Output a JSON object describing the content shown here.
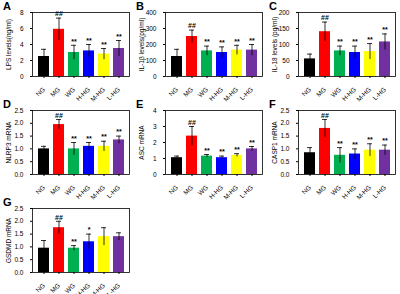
{
  "chart_data": [
    {
      "type": "bar",
      "title": "A",
      "y_label": "LPS levels(ng/ml)",
      "categories": [
        "NG",
        "MG",
        "WG",
        "H-HG",
        "M-HG",
        "L-HG"
      ],
      "values": [
        2.5,
        5.9,
        3.0,
        3.2,
        2.8,
        3.5
      ],
      "errors": [
        0.9,
        1.4,
        0.9,
        0.8,
        0.7,
        1.0
      ],
      "annotations": [
        null,
        "##",
        "**",
        "**",
        "**",
        "**"
      ],
      "colors": [
        "#000000",
        "#ff0000",
        "#00b050",
        "#0000ff",
        "#ffff00",
        "#7030a0"
      ],
      "ylim": [
        0,
        8
      ],
      "yticks": [
        0,
        2,
        4,
        6,
        8
      ]
    },
    {
      "type": "bar",
      "title": "B",
      "y_label": "IL-1β levels(pg/ml)",
      "categories": [
        "NG",
        "MG",
        "WG",
        "H-HG",
        "M-HG",
        "L-HG"
      ],
      "values": [
        125,
        250,
        160,
        150,
        165,
        165
      ],
      "errors": [
        45,
        40,
        30,
        35,
        30,
        35
      ],
      "annotations": [
        null,
        "##",
        "**",
        "**",
        "**",
        "**"
      ],
      "colors": [
        "#000000",
        "#ff0000",
        "#00b050",
        "#0000ff",
        "#ffff00",
        "#7030a0"
      ],
      "ylim": [
        0,
        400
      ],
      "yticks": [
        0,
        100,
        200,
        300,
        400
      ]
    },
    {
      "type": "bar",
      "title": "C",
      "y_label": "IL-18 levels (pg/ml)",
      "categories": [
        "NG",
        "MG",
        "WG",
        "H-HG",
        "M-HG",
        "L-HG"
      ],
      "values": [
        55,
        140,
        80,
        75,
        78,
        108
      ],
      "errors": [
        15,
        30,
        15,
        20,
        25,
        25
      ],
      "annotations": [
        null,
        "##",
        "**",
        "**",
        "**",
        "**"
      ],
      "colors": [
        "#000000",
        "#ff0000",
        "#00b050",
        "#0000ff",
        "#ffff00",
        "#7030a0"
      ],
      "ylim": [
        0,
        200
      ],
      "yticks": [
        0,
        50,
        100,
        150,
        200
      ]
    },
    {
      "type": "bar",
      "title": "D",
      "y_label": "NLRP3 mRNA",
      "categories": [
        "NG",
        "MG",
        "WG",
        "H-HG",
        "M-HG",
        "L-HG"
      ],
      "values": [
        1.0,
        1.95,
        1.0,
        1.1,
        1.1,
        1.35
      ],
      "errors": [
        0.1,
        0.2,
        0.25,
        0.15,
        0.2,
        0.15
      ],
      "annotations": [
        null,
        "##",
        "**",
        "**",
        "**",
        "**"
      ],
      "colors": [
        "#000000",
        "#ff0000",
        "#00b050",
        "#0000ff",
        "#ffff00",
        "#7030a0"
      ],
      "ylim": [
        0,
        2.5
      ],
      "yticks": [
        {
          "value": 0,
          "label": "0.0"
        },
        0.5,
        {
          "value": 1,
          "label": "1.0"
        },
        1.5,
        {
          "value": 2,
          "label": "2.0"
        },
        2.5
      ]
    },
    {
      "type": "bar",
      "title": "E",
      "y_label": "ASC mRNA",
      "categories": [
        "NG",
        "MG",
        "WG",
        "H-HG",
        "M-HG",
        "L-HG"
      ],
      "values": [
        1.05,
        2.4,
        1.15,
        1.05,
        1.2,
        1.6
      ],
      "errors": [
        0.1,
        0.6,
        0.1,
        0.1,
        0.1,
        0.15
      ],
      "annotations": [
        null,
        "##",
        "**",
        "**",
        "**",
        "**"
      ],
      "colors": [
        "#000000",
        "#ff0000",
        "#00b050",
        "#0000ff",
        "#ffff00",
        "#7030a0"
      ],
      "ylim": [
        0,
        4
      ],
      "yticks": [
        0,
        1,
        2,
        3,
        4
      ]
    },
    {
      "type": "bar",
      "title": "F",
      "y_label": "CASP1 mRNA",
      "categories": [
        "NG",
        "MG",
        "WG",
        "H-HG",
        "M-HG",
        "L-HG"
      ],
      "values": [
        0.85,
        1.8,
        0.75,
        0.8,
        0.95,
        0.95
      ],
      "errors": [
        0.2,
        0.35,
        0.3,
        0.2,
        0.25,
        0.2
      ],
      "annotations": [
        null,
        "##",
        "**",
        "**",
        "**",
        "**"
      ],
      "colors": [
        "#000000",
        "#ff0000",
        "#00b050",
        "#0000ff",
        "#ffff00",
        "#7030a0"
      ],
      "ylim": [
        0,
        2.5
      ],
      "yticks": [
        {
          "value": 0,
          "label": "0.0"
        },
        0.5,
        {
          "value": 1,
          "label": "1.0"
        },
        1.5,
        {
          "value": 2,
          "label": "2.0"
        },
        2.5
      ]
    },
    {
      "type": "bar",
      "title": "G",
      "y_label": "GSDMD mRNA",
      "categories": [
        "NG",
        "MG",
        "WG",
        "H-HG",
        "M-HG",
        "L-HG"
      ],
      "values": [
        0.95,
        1.75,
        0.95,
        1.2,
        1.4,
        1.4
      ],
      "errors": [
        0.3,
        0.25,
        0.1,
        0.3,
        0.35,
        0.15
      ],
      "annotations": [
        null,
        "##",
        "**",
        "*",
        null,
        null
      ],
      "colors": [
        "#000000",
        "#ff0000",
        "#00b050",
        "#0000ff",
        "#ffff00",
        "#7030a0"
      ],
      "ylim": [
        0,
        2.5
      ],
      "yticks": [
        {
          "value": 0,
          "label": "0.0"
        },
        0.5,
        {
          "value": 1,
          "label": "1.0"
        },
        1.5,
        {
          "value": 2,
          "label": "2.0"
        },
        2.5
      ]
    }
  ]
}
